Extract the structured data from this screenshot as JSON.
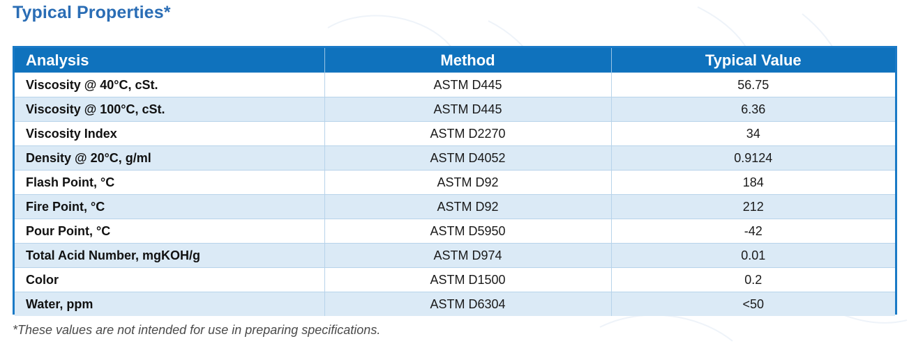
{
  "page": {
    "title": "Typical Properties*",
    "footnote": "*These values are not intended for use in preparing specifications."
  },
  "colors": {
    "title": "#2a6db5",
    "header_bg": "#0f72bd",
    "header_text": "#ffffff",
    "row_alt_bg": "#dbeaf6",
    "border": "#1a7ac6"
  },
  "table": {
    "headers": [
      "Analysis",
      "Method",
      "Typical Value"
    ],
    "rows": [
      {
        "analysis": "Viscosity @ 40°C, cSt.",
        "method": "ASTM D445",
        "value": "56.75"
      },
      {
        "analysis": "Viscosity @ 100°C, cSt.",
        "method": "ASTM D445",
        "value": "6.36"
      },
      {
        "analysis": "Viscosity Index",
        "method": "ASTM D2270",
        "value": "34"
      },
      {
        "analysis": "Density @ 20°C, g/ml",
        "method": "ASTM D4052",
        "value": "0.9124"
      },
      {
        "analysis": "Flash Point, °C",
        "method": "ASTM D92",
        "value": "184"
      },
      {
        "analysis": "Fire Point, °C",
        "method": "ASTM D92",
        "value": "212"
      },
      {
        "analysis": "Pour Point, °C",
        "method": "ASTM D5950",
        "value": "-42"
      },
      {
        "analysis": "Total Acid Number, mgKOH/g",
        "method": "ASTM D974",
        "value": "0.01"
      },
      {
        "analysis": "Color",
        "method": "ASTM D1500",
        "value": "0.2"
      },
      {
        "analysis": "Water, ppm",
        "method": "ASTM D6304",
        "value": "<50"
      }
    ]
  }
}
